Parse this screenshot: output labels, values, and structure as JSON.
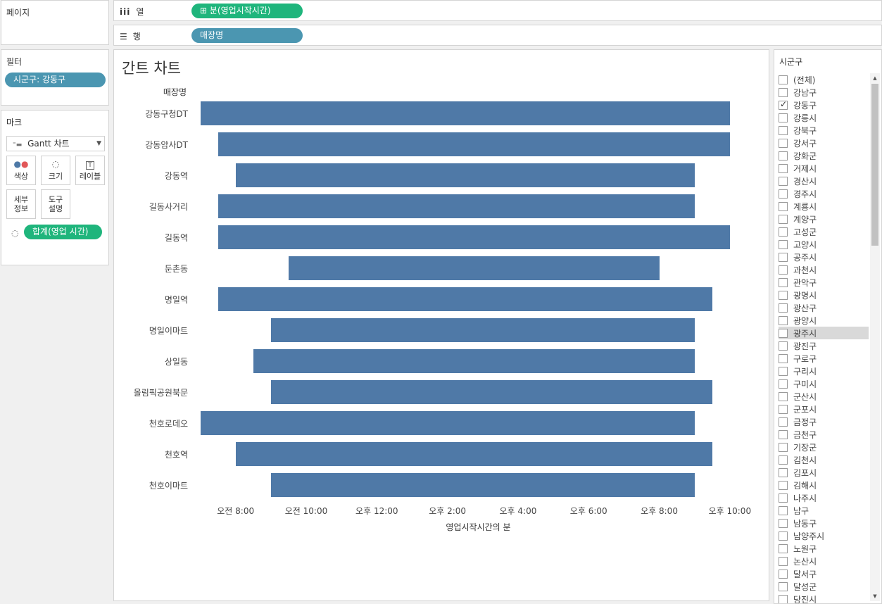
{
  "pages_panel": {
    "title": "페이지"
  },
  "columns_shelf": {
    "label": "열",
    "pill": "⊞ 분(영업시작시간)"
  },
  "rows_shelf": {
    "label": "행",
    "pill": "매장명"
  },
  "filters_panel": {
    "title": "필터",
    "pill": "시군구: 강동구"
  },
  "marks_panel": {
    "title": "마크",
    "type_select": "Gantt 차트",
    "buttons": {
      "color": "색상",
      "size": "크기",
      "label": "레이블",
      "detail_1": "세부",
      "detail_2": "정보",
      "tooltip_1": "도구",
      "tooltip_2": "설명"
    },
    "size_pill": "합계(영업 시간)"
  },
  "chart": {
    "title": "간트 차트",
    "row_header": "매장명"
  },
  "chart_data": {
    "type": "gantt",
    "title": "간트 차트",
    "row_field": "매장명",
    "xlabel": "영업시작시간의 분",
    "x_ticks": [
      "오전 8:00",
      "오전 10:00",
      "오후 12:00",
      "오후 2:00",
      "오후 4:00",
      "오후 6:00",
      "오후 8:00",
      "오후 10:00"
    ],
    "x_range_hours": [
      6.75,
      23.0
    ],
    "rows": [
      {
        "name": "강동구청DT",
        "start": 7.0,
        "end": 22.0
      },
      {
        "name": "강동암사DT",
        "start": 7.5,
        "end": 22.0
      },
      {
        "name": "강동역",
        "start": 8.0,
        "end": 21.0
      },
      {
        "name": "길동사거리",
        "start": 7.5,
        "end": 21.0
      },
      {
        "name": "길동역",
        "start": 7.5,
        "end": 22.0
      },
      {
        "name": "둔촌동",
        "start": 9.5,
        "end": 20.0
      },
      {
        "name": "명일역",
        "start": 7.5,
        "end": 21.5
      },
      {
        "name": "명일이마트",
        "start": 9.0,
        "end": 21.0
      },
      {
        "name": "상일동",
        "start": 8.5,
        "end": 21.0
      },
      {
        "name": "올림픽공원북문",
        "start": 9.0,
        "end": 21.5
      },
      {
        "name": "천호로데오",
        "start": 7.0,
        "end": 21.0
      },
      {
        "name": "천호역",
        "start": 8.0,
        "end": 21.5
      },
      {
        "name": "천호이마트",
        "start": 9.0,
        "end": 21.0
      }
    ],
    "bar_color": "#4f79a7"
  },
  "filter_list": {
    "title": "시군구",
    "items": [
      {
        "label": "(전체)",
        "checked": false
      },
      {
        "label": "강남구",
        "checked": false
      },
      {
        "label": "강동구",
        "checked": true
      },
      {
        "label": "강릉시",
        "checked": false
      },
      {
        "label": "강북구",
        "checked": false
      },
      {
        "label": "강서구",
        "checked": false
      },
      {
        "label": "강화군",
        "checked": false
      },
      {
        "label": "거제시",
        "checked": false
      },
      {
        "label": "경산시",
        "checked": false
      },
      {
        "label": "경주시",
        "checked": false
      },
      {
        "label": "계룡시",
        "checked": false
      },
      {
        "label": "계양구",
        "checked": false
      },
      {
        "label": "고성군",
        "checked": false
      },
      {
        "label": "고양시",
        "checked": false
      },
      {
        "label": "공주시",
        "checked": false
      },
      {
        "label": "과천시",
        "checked": false
      },
      {
        "label": "관악구",
        "checked": false
      },
      {
        "label": "광명시",
        "checked": false
      },
      {
        "label": "광산구",
        "checked": false
      },
      {
        "label": "광양시",
        "checked": false
      },
      {
        "label": "광주시",
        "checked": false,
        "highlighted": true
      },
      {
        "label": "광진구",
        "checked": false
      },
      {
        "label": "구로구",
        "checked": false
      },
      {
        "label": "구리시",
        "checked": false
      },
      {
        "label": "구미시",
        "checked": false
      },
      {
        "label": "군산시",
        "checked": false
      },
      {
        "label": "군포시",
        "checked": false
      },
      {
        "label": "금정구",
        "checked": false
      },
      {
        "label": "금천구",
        "checked": false
      },
      {
        "label": "기장군",
        "checked": false
      },
      {
        "label": "김천시",
        "checked": false
      },
      {
        "label": "김포시",
        "checked": false
      },
      {
        "label": "김해시",
        "checked": false
      },
      {
        "label": "나주시",
        "checked": false
      },
      {
        "label": "남구",
        "checked": false
      },
      {
        "label": "남동구",
        "checked": false
      },
      {
        "label": "남양주시",
        "checked": false
      },
      {
        "label": "노원구",
        "checked": false
      },
      {
        "label": "논산시",
        "checked": false
      },
      {
        "label": "달서구",
        "checked": false
      },
      {
        "label": "달성군",
        "checked": false
      },
      {
        "label": "당진시",
        "checked": false
      }
    ]
  },
  "colors": {
    "green_pill": "#1fb57c",
    "blue_pill": "#4b96b1",
    "bar": "#4f79a7"
  }
}
